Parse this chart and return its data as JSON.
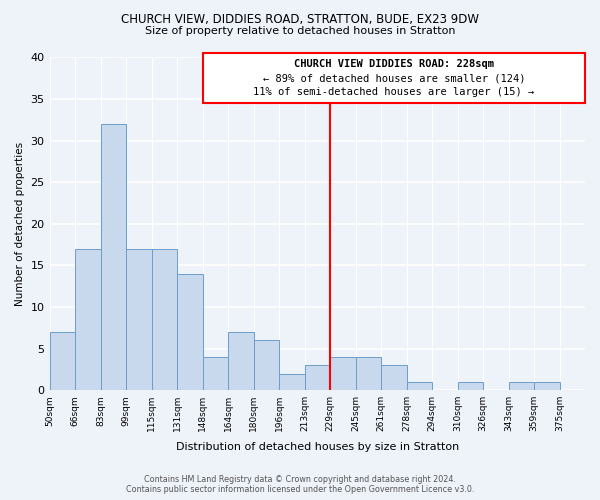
{
  "title1": "CHURCH VIEW, DIDDIES ROAD, STRATTON, BUDE, EX23 9DW",
  "title2": "Size of property relative to detached houses in Stratton",
  "xlabel": "Distribution of detached houses by size in Stratton",
  "ylabel": "Number of detached properties",
  "bin_labels": [
    "50sqm",
    "66sqm",
    "83sqm",
    "99sqm",
    "115sqm",
    "131sqm",
    "148sqm",
    "164sqm",
    "180sqm",
    "196sqm",
    "213sqm",
    "229sqm",
    "245sqm",
    "261sqm",
    "278sqm",
    "294sqm",
    "310sqm",
    "326sqm",
    "343sqm",
    "359sqm",
    "375sqm"
  ],
  "bar_heights": [
    7,
    17,
    32,
    17,
    17,
    14,
    4,
    7,
    6,
    2,
    3,
    4,
    4,
    3,
    1,
    0,
    1,
    0,
    1,
    1,
    0
  ],
  "bar_color": "#c8d9ee",
  "bar_edge_color": "#6b9ec8",
  "ref_line_x": 11,
  "annotation_title": "CHURCH VIEW DIDDIES ROAD: 228sqm",
  "annotation_line1": "← 89% of detached houses are smaller (124)",
  "annotation_line2": "11% of semi-detached houses are larger (15) →",
  "ylim": [
    0,
    40
  ],
  "yticks": [
    0,
    5,
    10,
    15,
    20,
    25,
    30,
    35,
    40
  ],
  "footer_line1": "Contains HM Land Registry data © Crown copyright and database right 2024.",
  "footer_line2": "Contains public sector information licensed under the Open Government Licence v3.0.",
  "background_color": "#eef2f9",
  "grid_color": "#d0d8e8",
  "white_grid_color": "#ffffff"
}
